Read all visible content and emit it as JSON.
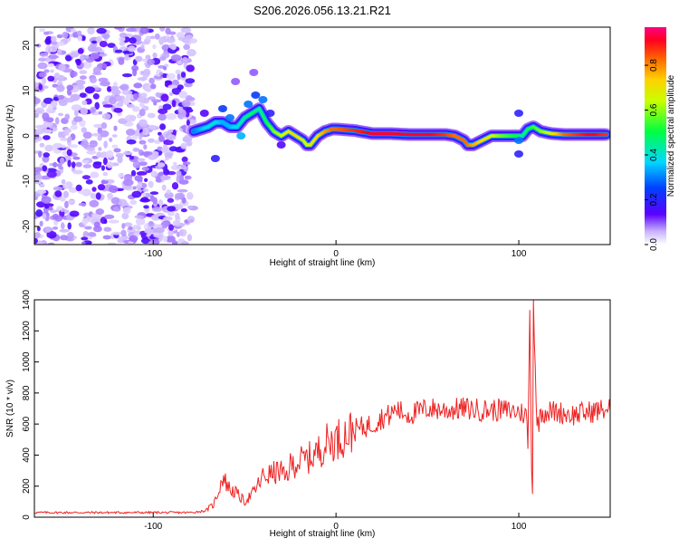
{
  "chart_data": [
    {
      "type": "heatmap",
      "title": "S206.2026.056.13.21.R21",
      "xlabel": "Height of straight line (km)",
      "ylabel": "Frequency (Hz)",
      "xlim": [
        -165,
        150
      ],
      "ylim": [
        -24,
        24
      ],
      "xticks": [
        -100,
        0,
        100
      ],
      "yticks": [
        -20,
        -10,
        0,
        10,
        20
      ],
      "colorbar": {
        "label": "Normalized spectral amplitude",
        "range": [
          0,
          0.97
        ],
        "ticks": [
          0.0,
          0.2,
          0.4,
          0.6,
          0.8
        ]
      },
      "noise_region": {
        "x": [
          -165,
          -78
        ],
        "amplitude": 0.3
      },
      "ridge_line": {
        "x": [
          -78,
          -74,
          -70,
          -66,
          -62,
          -58,
          -54,
          -50,
          -46,
          -42,
          -38,
          -34,
          -30,
          -26,
          -22,
          -18,
          -16,
          -14,
          -10,
          -6,
          -2,
          0,
          10,
          20,
          30,
          40,
          50,
          60,
          65,
          70,
          72,
          75,
          80,
          85,
          90,
          95,
          100,
          102,
          105,
          108,
          112,
          118,
          125,
          132,
          140,
          148
        ],
        "freq": [
          1,
          1.5,
          2,
          3,
          3,
          2,
          2,
          4,
          5,
          6,
          3,
          1,
          0,
          1,
          0,
          -1,
          -2,
          -2,
          0,
          1,
          1.5,
          1.5,
          1.2,
          0.5,
          0.5,
          0.3,
          0.3,
          0.3,
          0,
          -1,
          -2,
          -2,
          -1,
          0,
          0,
          0,
          0,
          0,
          1.5,
          2,
          1,
          0.5,
          0.3,
          0.3,
          0.3,
          0.3
        ],
        "amp": [
          0.3,
          0.35,
          0.4,
          0.4,
          0.35,
          0.35,
          0.4,
          0.45,
          0.5,
          0.45,
          0.5,
          0.6,
          0.65,
          0.7,
          0.75,
          0.7,
          0.65,
          0.7,
          0.75,
          0.8,
          0.85,
          0.85,
          0.9,
          0.95,
          0.95,
          0.95,
          0.95,
          0.9,
          0.85,
          0.85,
          0.85,
          0.8,
          0.75,
          0.7,
          0.6,
          0.55,
          0.5,
          0.45,
          0.5,
          0.55,
          0.6,
          0.7,
          0.85,
          0.9,
          0.95,
          0.9
        ]
      }
    },
    {
      "type": "line",
      "xlabel": "Height of straight line (km)",
      "ylabel": "SNR (10 * v/v)",
      "xlim": [
        -165,
        150
      ],
      "ylim": [
        0,
        1400
      ],
      "xticks": [
        -100,
        0,
        100
      ],
      "yticks": [
        0,
        200,
        400,
        600,
        800,
        1000,
        1200,
        1400
      ],
      "color": "#ee2222",
      "series": [
        {
          "name": "SNR",
          "x": [
            -165,
            -140,
            -110,
            -80,
            -72,
            -67,
            -64,
            -62,
            -60,
            -58,
            -55,
            -50,
            -45,
            -40,
            -35,
            -30,
            -28,
            -25,
            -20,
            -15,
            -10,
            -5,
            0,
            10,
            20,
            25,
            30,
            33,
            35,
            40,
            50,
            60,
            70,
            80,
            90,
            100,
            104,
            105,
            106,
            107,
            107.5,
            108,
            110,
            112,
            120,
            130,
            140,
            150
          ],
          "y": [
            30,
            30,
            30,
            30,
            40,
            80,
            180,
            260,
            220,
            180,
            160,
            100,
            160,
            260,
            280,
            300,
            240,
            330,
            360,
            380,
            420,
            480,
            500,
            560,
            600,
            640,
            660,
            700,
            680,
            660,
            700,
            690,
            700,
            690,
            690,
            680,
            660,
            480,
            1300,
            300,
            150,
            1400,
            560,
            680,
            680,
            660,
            680,
            700
          ]
        }
      ]
    }
  ]
}
